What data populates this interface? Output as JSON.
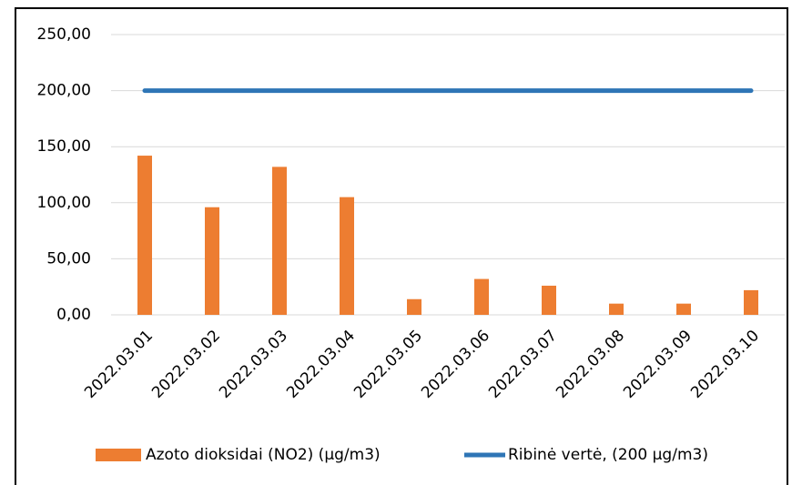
{
  "chart_data": {
    "type": "bar",
    "categories": [
      "2022.03.01",
      "2022.03.02",
      "2022.03.03",
      "2022.03.04",
      "2022.03.05",
      "2022.03.06",
      "2022.03.07",
      "2022.03.08",
      "2022.03.09",
      "2022.03.10"
    ],
    "series": [
      {
        "name": "Azoto dioksidai (NO2) (µg/m3)",
        "type": "bar",
        "color": "#ed7d31",
        "values": [
          142,
          96,
          132,
          105,
          14,
          32,
          26,
          10,
          10,
          22
        ]
      },
      {
        "name": "Ribinė vertė, (200 µg/m3)",
        "type": "line",
        "color": "#2e75b6",
        "values": [
          200,
          200,
          200,
          200,
          200,
          200,
          200,
          200,
          200,
          200
        ]
      }
    ],
    "ylim": [
      0,
      250
    ],
    "yticks": [
      {
        "value": 0,
        "label": "0,00"
      },
      {
        "value": 50,
        "label": "50,00"
      },
      {
        "value": 100,
        "label": "100,00"
      },
      {
        "value": 150,
        "label": "150,00"
      },
      {
        "value": 200,
        "label": "200,00"
      },
      {
        "value": 250,
        "label": "250,00"
      }
    ],
    "grid": true,
    "legend": "bottom"
  }
}
